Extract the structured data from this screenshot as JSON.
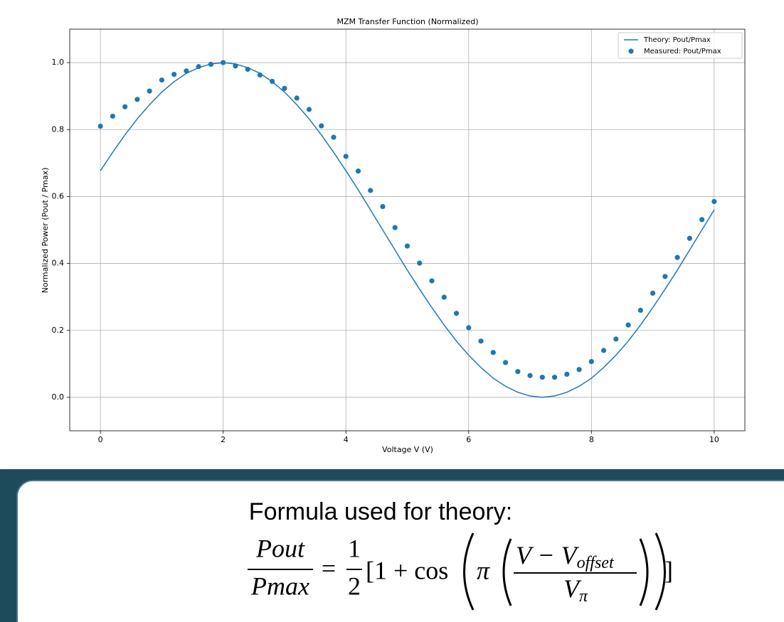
{
  "chart_data": {
    "type": "line",
    "title": "MZM Transfer Function (Normalized)",
    "x_label": "Voltage V (V)",
    "y_label": "Normalized Power (Pout / Pmax)",
    "x": [
      0,
      0.2,
      0.4,
      0.6,
      0.8,
      1.0,
      1.2,
      1.4,
      1.6,
      1.8,
      2.0,
      2.2,
      2.4,
      2.6,
      2.8,
      3.0,
      3.2,
      3.4,
      3.6,
      3.8,
      4.0,
      4.2,
      4.4,
      4.6,
      4.8,
      5.0,
      5.2,
      5.4,
      5.6,
      5.8,
      6.0,
      6.2,
      6.4,
      6.6,
      6.8,
      7.0,
      7.2,
      7.4,
      7.6,
      7.8,
      8.0,
      8.2,
      8.4,
      8.6,
      8.8,
      9.0,
      9.2,
      9.4,
      9.6,
      9.8,
      10.0
    ],
    "series": [
      {
        "name": "Theory: Pout/Pmax",
        "type": "line",
        "color": "#1f77b4",
        "values": [
          0.677,
          0.732,
          0.784,
          0.832,
          0.874,
          0.912,
          0.943,
          0.968,
          0.985,
          0.996,
          1.0,
          0.996,
          0.985,
          0.968,
          0.943,
          0.912,
          0.874,
          0.832,
          0.784,
          0.732,
          0.677,
          0.62,
          0.56,
          0.5,
          0.44,
          0.38,
          0.323,
          0.268,
          0.216,
          0.168,
          0.126,
          0.089,
          0.057,
          0.033,
          0.015,
          0.004,
          0.0,
          0.004,
          0.015,
          0.033,
          0.057,
          0.089,
          0.126,
          0.168,
          0.216,
          0.268,
          0.323,
          0.38,
          0.44,
          0.5,
          0.56
        ]
      },
      {
        "name": "Measured: Pout/Pmax",
        "type": "scatter",
        "color": "#1f77b4",
        "values": [
          0.81,
          0.84,
          0.868,
          0.89,
          0.915,
          0.948,
          0.965,
          0.975,
          0.988,
          0.995,
          1.0,
          0.99,
          0.98,
          0.963,
          0.944,
          0.923,
          0.894,
          0.86,
          0.811,
          0.777,
          0.72,
          0.676,
          0.618,
          0.57,
          0.507,
          0.452,
          0.401,
          0.348,
          0.299,
          0.251,
          0.208,
          0.168,
          0.134,
          0.104,
          0.077,
          0.065,
          0.06,
          0.06,
          0.069,
          0.083,
          0.107,
          0.14,
          0.174,
          0.216,
          0.26,
          0.311,
          0.361,
          0.418,
          0.475,
          0.531,
          0.585
        ]
      }
    ],
    "xlim": [
      -0.5,
      10.5
    ],
    "xticks": [
      0,
      2,
      4,
      6,
      8,
      10
    ],
    "ylim": [
      -0.1,
      1.1
    ],
    "yticks": [
      {
        "value": 0,
        "label": "0.0"
      },
      0.2,
      0.4,
      0.6,
      0.8,
      {
        "value": 1,
        "label": "1.0"
      }
    ],
    "grid": true,
    "legend": "upper right"
  },
  "formula": {
    "caption": "Formula used for theory:",
    "lhs_numerator": "Pout",
    "lhs_denominator": "Pmax",
    "equals": "=",
    "half_numerator": "1",
    "half_denominator": "2",
    "bracket_open": "[1 + cos",
    "pi": "π",
    "inner_numerator": "V − V",
    "inner_numerator_sub": "offset",
    "inner_denominator": "V",
    "inner_denominator_sub": "π",
    "bracket_close": "]"
  }
}
